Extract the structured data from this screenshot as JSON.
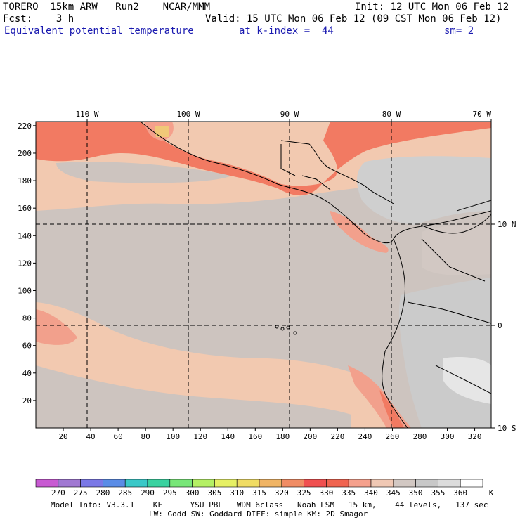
{
  "header": {
    "line1_left": "TORERO  15km ARW   Run2    NCAR/MMM",
    "line1_right": "Init: 12 UTC Mon 06 Feb 12",
    "line2_left": "Fcst:    3 h",
    "line2_right": "Valid: 15 UTC Mon 06 Feb 12 (09 CST Mon 06 Feb 12)",
    "field_name": "Equivalent potential temperature",
    "level": "at k-index =  44",
    "smoothing": "sm= 2"
  },
  "axes": {
    "top_lon_labels": [
      "110 W",
      "100 W",
      "90 W",
      "80 W",
      "70 W"
    ],
    "right_lat_labels": [
      "10 N",
      "0",
      "10 S"
    ],
    "left_y_ticks": [
      20,
      40,
      60,
      80,
      100,
      120,
      140,
      160,
      180,
      200,
      220
    ],
    "bottom_x_ticks": [
      20,
      40,
      60,
      80,
      100,
      120,
      140,
      160,
      180,
      200,
      220,
      240,
      260,
      280,
      300,
      320
    ]
  },
  "colorbar": {
    "unit": "K",
    "labels": [
      "270",
      "275",
      "280",
      "285",
      "290",
      "295",
      "300",
      "305",
      "310",
      "315",
      "320",
      "325",
      "330",
      "335",
      "340",
      "345",
      "350",
      "355",
      "360"
    ],
    "colors": [
      "#c85ad2",
      "#a078d2",
      "#7a78e6",
      "#5a8ce6",
      "#3ac8c8",
      "#3ad2a0",
      "#78e678",
      "#b4f064",
      "#e6f064",
      "#f0dc64",
      "#f0b464",
      "#f08c64",
      "#f05050",
      "#f06450",
      "#f5a08c",
      "#f0c8b4",
      "#d2c8c3",
      "#c8c8c8",
      "#dcdcdc",
      "#ffffff"
    ]
  },
  "footer": {
    "line1": "Model Info: V3.3.1    KF      YSU PBL   WDM 6class   Noah LSM   15 km,    44 levels,   137 sec",
    "line2": "LW: Godd SW: Goddard DIFF: simple KM: 2D Smagor"
  }
}
